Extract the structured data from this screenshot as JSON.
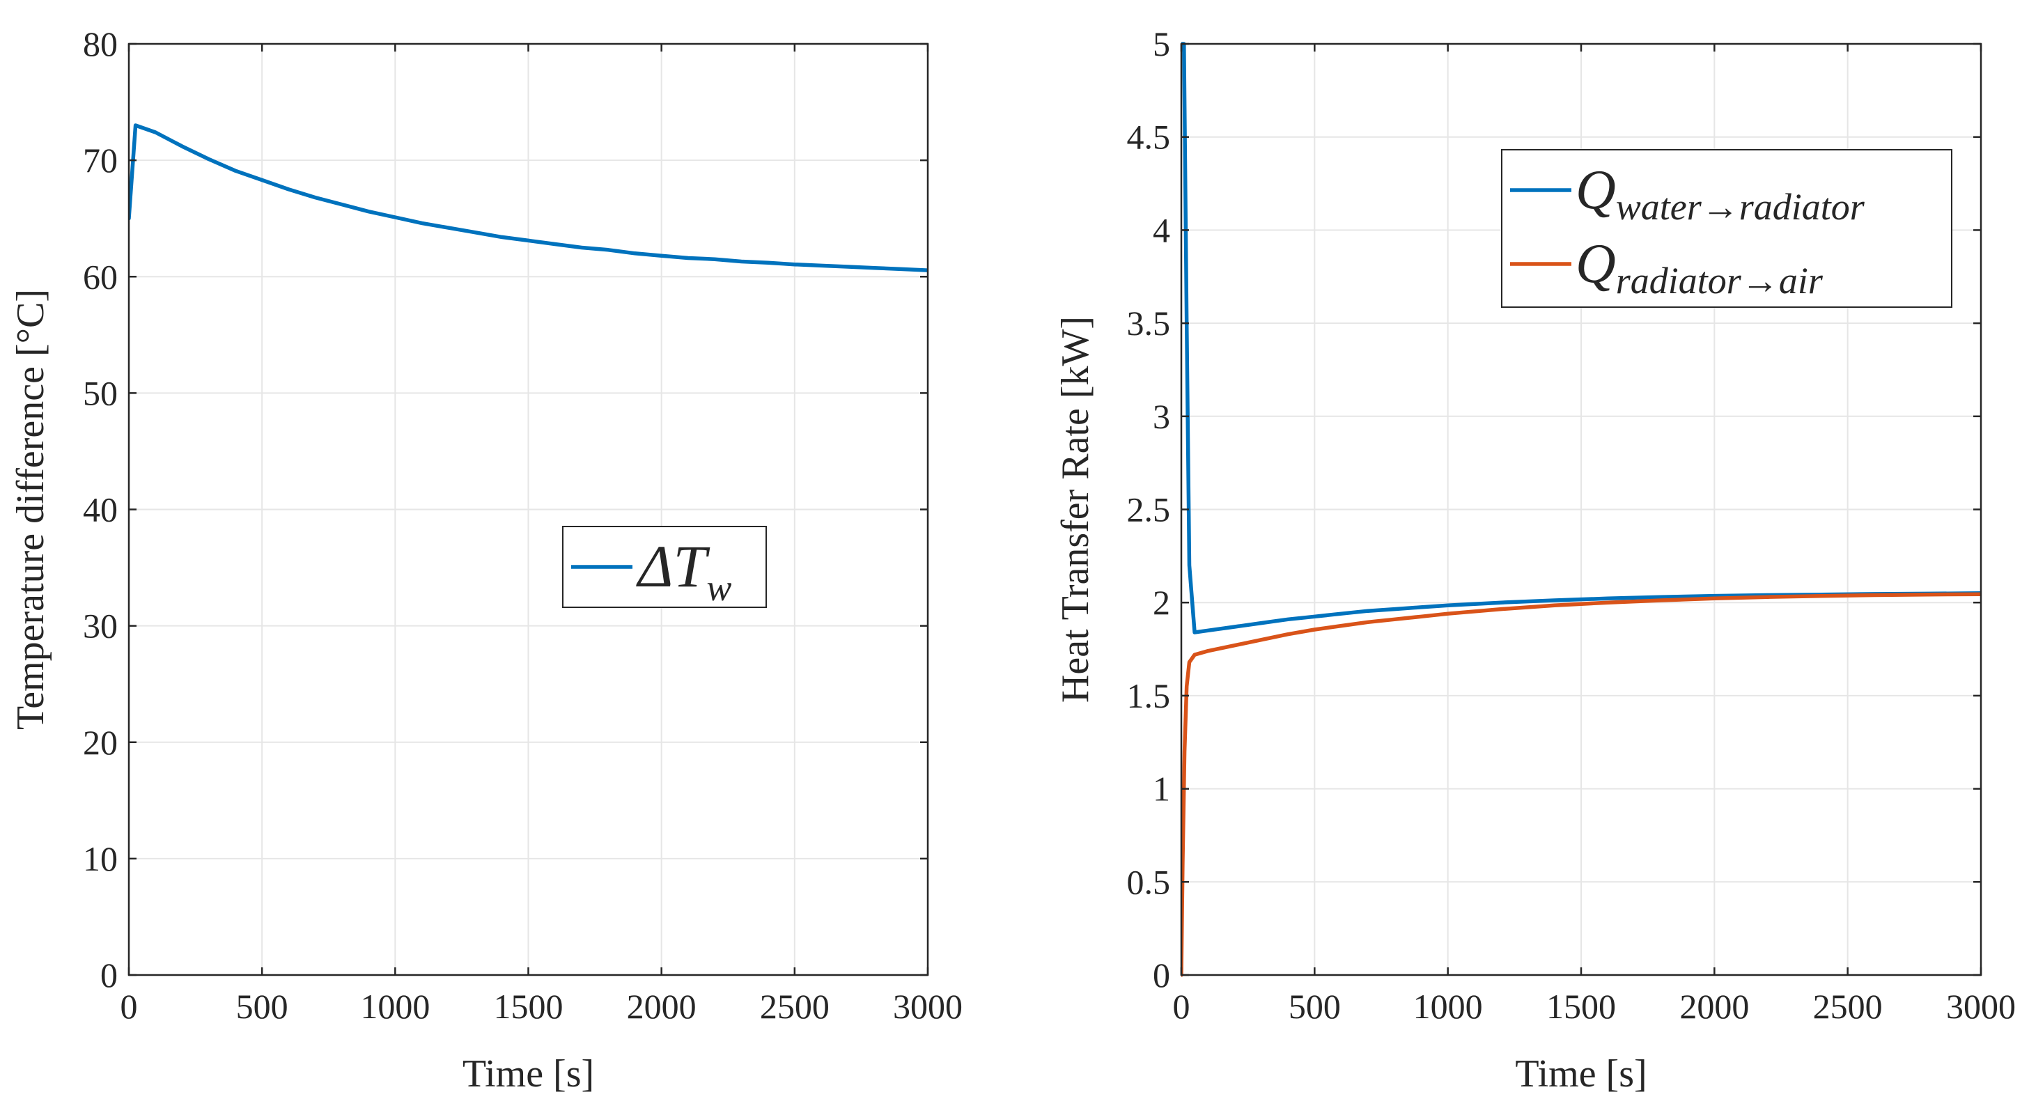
{
  "chart_data": [
    {
      "type": "line",
      "title": "",
      "xlabel": "Time [s]",
      "ylabel": "Temperature difference [°C]",
      "xlim": [
        0,
        3000
      ],
      "ylim": [
        0,
        80
      ],
      "xticks": [
        0,
        500,
        1000,
        1500,
        2000,
        2500,
        3000
      ],
      "yticks": [
        0,
        10,
        20,
        30,
        40,
        50,
        60,
        70,
        80
      ],
      "xtick_labels": [
        "0",
        "500",
        "1000",
        "1500",
        "2000",
        "2500",
        "3000"
      ],
      "ytick_labels": [
        "0",
        "10",
        "20",
        "30",
        "40",
        "50",
        "60",
        "70",
        "80"
      ],
      "grid": true,
      "legend_position": "center-right",
      "series": [
        {
          "name": "ΔT_w",
          "legend_main": "ΔT",
          "legend_sub": "w",
          "color": "#0072BD",
          "x": [
            0,
            25,
            100,
            200,
            300,
            400,
            500,
            600,
            700,
            800,
            900,
            1000,
            1100,
            1200,
            1300,
            1400,
            1500,
            1600,
            1700,
            1800,
            1900,
            2000,
            2100,
            2200,
            2300,
            2400,
            2500,
            2600,
            2700,
            2800,
            2900,
            3000
          ],
          "y": [
            65,
            73,
            72.4,
            71.2,
            70.1,
            69.1,
            68.3,
            67.5,
            66.8,
            66.2,
            65.6,
            65.1,
            64.6,
            64.2,
            63.8,
            63.4,
            63.1,
            62.8,
            62.5,
            62.3,
            62.0,
            61.8,
            61.6,
            61.5,
            61.3,
            61.2,
            61.05,
            60.95,
            60.85,
            60.75,
            60.65,
            60.55
          ]
        }
      ]
    },
    {
      "type": "line",
      "title": "",
      "xlabel": "Time [s]",
      "ylabel": "Heat Transfer Rate [kW]",
      "xlim": [
        0,
        3000
      ],
      "ylim": [
        0,
        5
      ],
      "xticks": [
        0,
        500,
        1000,
        1500,
        2000,
        2500,
        3000
      ],
      "yticks": [
        0,
        0.5,
        1,
        1.5,
        2,
        2.5,
        3,
        3.5,
        4,
        4.5,
        5
      ],
      "xtick_labels": [
        "0",
        "500",
        "1000",
        "1500",
        "2000",
        "2500",
        "3000"
      ],
      "ytick_labels": [
        "0",
        "0.5",
        "1",
        "1.5",
        "2",
        "2.5",
        "3",
        "3.5",
        "4",
        "4.5",
        "5"
      ],
      "grid": true,
      "legend_position": "top-right",
      "series": [
        {
          "name": "Q_water→radiator",
          "legend_main": "Q",
          "legend_sub": "water→radiator",
          "color": "#0072BD",
          "x": [
            0,
            10,
            20,
            30,
            50,
            100,
            200,
            300,
            400,
            500,
            600,
            700,
            800,
            900,
            1000,
            1200,
            1400,
            1600,
            1800,
            2000,
            2200,
            2400,
            2600,
            2800,
            3000
          ],
          "y": [
            5.0,
            5.0,
            3.5,
            2.2,
            1.84,
            1.85,
            1.87,
            1.89,
            1.91,
            1.925,
            1.94,
            1.955,
            1.965,
            1.975,
            1.985,
            2.0,
            2.012,
            2.022,
            2.03,
            2.036,
            2.04,
            2.043,
            2.046,
            2.048,
            2.05
          ]
        },
        {
          "name": "Q_radiator→air",
          "legend_main": "Q",
          "legend_sub": "radiator→air",
          "color": "#D95319",
          "x": [
            0,
            5,
            12,
            20,
            30,
            50,
            100,
            200,
            300,
            400,
            500,
            600,
            700,
            800,
            900,
            1000,
            1200,
            1400,
            1600,
            1800,
            2000,
            2200,
            2400,
            2600,
            2800,
            3000
          ],
          "y": [
            0,
            0.6,
            1.2,
            1.55,
            1.68,
            1.72,
            1.74,
            1.77,
            1.8,
            1.83,
            1.855,
            1.875,
            1.895,
            1.91,
            1.925,
            1.94,
            1.965,
            1.985,
            2.0,
            2.012,
            2.022,
            2.03,
            2.035,
            2.04,
            2.043,
            2.045
          ]
        }
      ]
    }
  ]
}
